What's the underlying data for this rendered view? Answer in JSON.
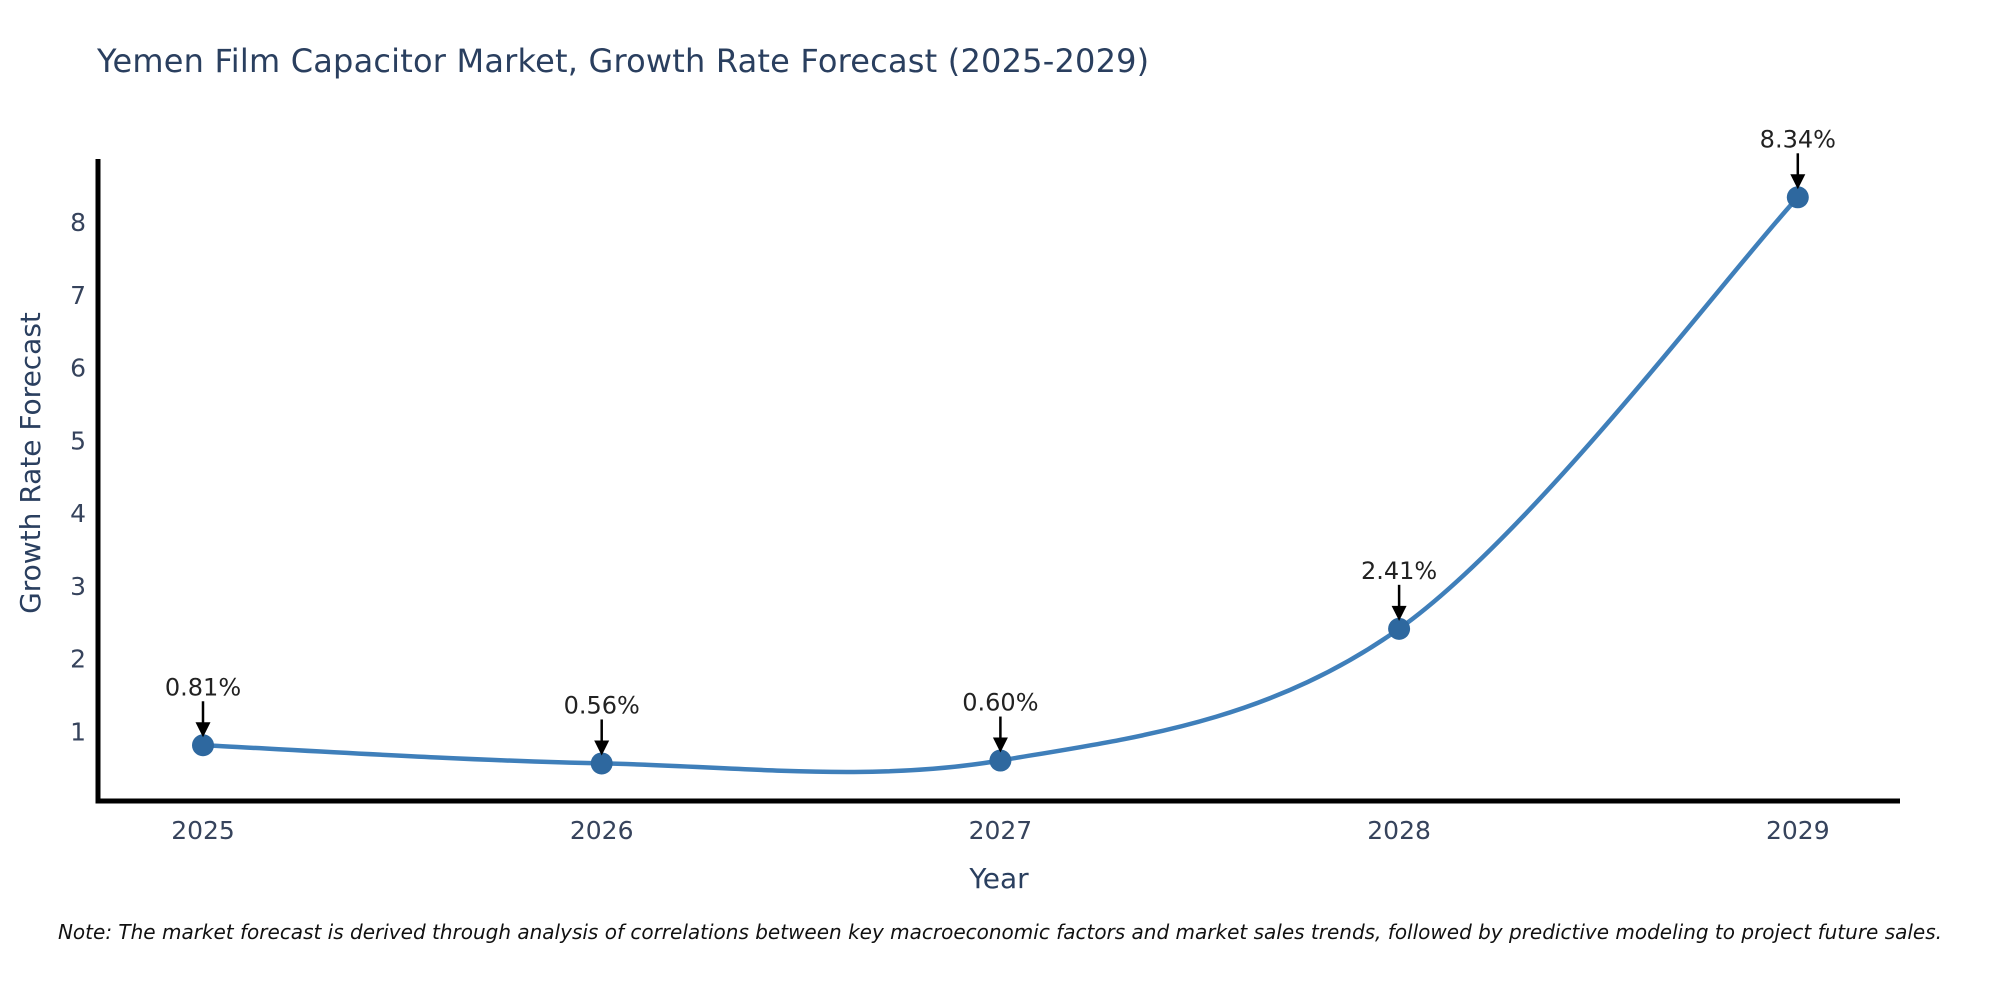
{
  "figure": {
    "background": "#ffffff",
    "note": "Note: The market forecast is derived through analysis of correlations between key macroeconomic factors and market sales trends, followed by predictive modeling to project future sales."
  },
  "chart_data": {
    "type": "line",
    "title": "Yemen Film Capacitor Market, Growth Rate Forecast (2025-2029)",
    "xlabel": "Year",
    "ylabel": "Growth Rate Forecast",
    "categories": [
      "2025",
      "2026",
      "2027",
      "2028",
      "2029"
    ],
    "series": [
      {
        "name": "Growth Rate Forecast",
        "values": [
          0.81,
          0.56,
          0.6,
          2.41,
          8.34
        ],
        "point_labels": [
          "0.81%",
          "0.56%",
          "0.60%",
          "2.41%",
          "8.34%"
        ]
      }
    ],
    "yticks": [
      1,
      2,
      3,
      4,
      5,
      6,
      7,
      8
    ],
    "ylim": [
      0.04,
      8.85
    ],
    "grid": false,
    "legend": "none",
    "line_shape": "spline",
    "markers": true,
    "annotation_style": "percentage labels above points with black down arrows",
    "colors": {
      "line": "#3f7fba",
      "marker": "#2e689f",
      "spine": "#000000",
      "title_text": "#2a3f5f",
      "tick_text": "#36435c",
      "annotation_text": "#222222",
      "annotation_arrow": "#000000",
      "note_text": "#111111"
    }
  }
}
